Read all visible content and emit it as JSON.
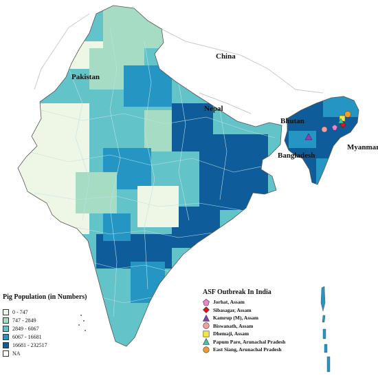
{
  "labels": {
    "china": "China",
    "pakistan": "Pakistan",
    "nepal": "Nepal",
    "bhutan": "Bhutan",
    "bangladesh": "Bangladesh",
    "myanmar": "Myanmar"
  },
  "legend": {
    "title": "Pig Population (in Numbers)",
    "classes": [
      {
        "label": "0 - 747",
        "color": "#eef7e6"
      },
      {
        "label": "747 - 2849",
        "color": "#a6dcc4"
      },
      {
        "label": "2849 - 6067",
        "color": "#62c3c8"
      },
      {
        "label": "6067 - 16681",
        "color": "#2596c4"
      },
      {
        "label": "16681 - 232517",
        "color": "#0e5c9a"
      },
      {
        "label": "NA",
        "color": "#ffffff"
      }
    ]
  },
  "outbreak": {
    "title": "ASF Outbreak In India",
    "items": [
      {
        "label": "Jorhat, Assam",
        "symbol": "pentagon-icon",
        "color": "#ee82c8"
      },
      {
        "label": "Sibasagar, Assam",
        "symbol": "diamond-icon",
        "color": "#d7191c"
      },
      {
        "label": "Kamrup (M), Assam",
        "symbol": "triangle-icon",
        "color": "#8e3fb0"
      },
      {
        "label": "Biswanath, Assam",
        "symbol": "circle-icon",
        "color": "#f4a09a"
      },
      {
        "label": "Dhemaji, Assam",
        "symbol": "square-icon",
        "color": "#f5e642"
      },
      {
        "label": "Papum Pare, Arunachal Pradesh",
        "symbol": "triangle-icon",
        "color": "#3cc6a8"
      },
      {
        "label": "East Siang, Arunachal Pradesh",
        "symbol": "circle-icon",
        "color": "#f39a2c"
      }
    ]
  }
}
